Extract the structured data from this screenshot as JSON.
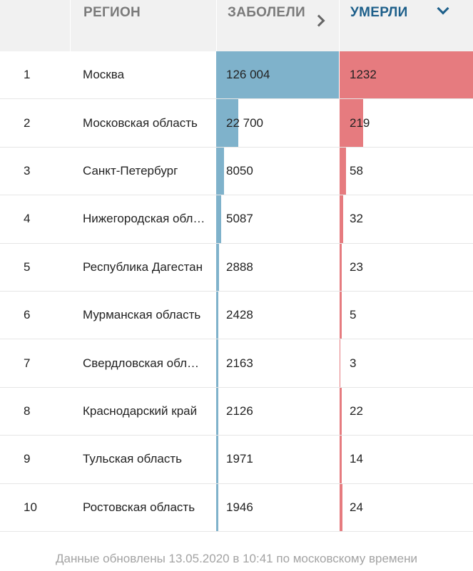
{
  "header": {
    "region": "РЕГИОН",
    "sick": "ЗАБОЛЕЛИ",
    "dead": "УМЕРЛИ"
  },
  "rows": [
    {
      "num": "1",
      "region": "Москва",
      "sick": "126 004",
      "sick_value": 126004,
      "dead": "1232",
      "dead_value": 1232
    },
    {
      "num": "2",
      "region": "Московская область",
      "sick": "22 700",
      "sick_value": 22700,
      "dead": "219",
      "dead_value": 219
    },
    {
      "num": "3",
      "region": "Санкт-Петербург",
      "sick": "8050",
      "sick_value": 8050,
      "dead": "58",
      "dead_value": 58
    },
    {
      "num": "4",
      "region": "Нижегородская область",
      "sick": "5087",
      "sick_value": 5087,
      "dead": "32",
      "dead_value": 32
    },
    {
      "num": "5",
      "region": "Республика Дагестан",
      "sick": "2888",
      "sick_value": 2888,
      "dead": "23",
      "dead_value": 23
    },
    {
      "num": "6",
      "region": "Мурманская область",
      "sick": "2428",
      "sick_value": 2428,
      "dead": "5",
      "dead_value": 5
    },
    {
      "num": "7",
      "region": "Свердловская область",
      "sick": "2163",
      "sick_value": 2163,
      "dead": "3",
      "dead_value": 3
    },
    {
      "num": "8",
      "region": "Краснодарский край",
      "sick": "2126",
      "sick_value": 2126,
      "dead": "22",
      "dead_value": 22
    },
    {
      "num": "9",
      "region": "Тульская область",
      "sick": "1971",
      "sick_value": 1971,
      "dead": "14",
      "dead_value": 14
    },
    {
      "num": "10",
      "region": "Ростовская область",
      "sick": "1946",
      "sick_value": 1946,
      "dead": "24",
      "dead_value": 24
    }
  ],
  "colors": {
    "sick_bar": "#7fb2cb",
    "dead_bar": "#e67b7f",
    "active_sort": "#1d5f8a"
  },
  "icons": {
    "sick_sort": "chevron-right-icon",
    "dead_sort": "chevron-down-icon"
  },
  "footer": {
    "updated": "Данные обновлены 13.05.2020 в 10:41 по московскому времени"
  }
}
